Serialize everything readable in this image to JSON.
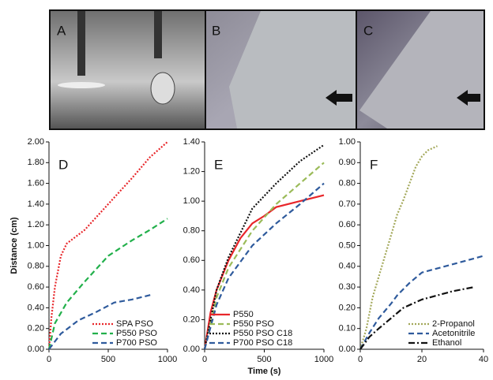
{
  "photos": [
    {
      "label": "A"
    },
    {
      "label": "B"
    },
    {
      "label": "C"
    }
  ],
  "chart_data": [
    {
      "type": "line",
      "panel_label": "D",
      "y_label": "Distance (cm)",
      "xlim": [
        0,
        1000
      ],
      "xticks": [
        0,
        500,
        1000
      ],
      "ylim": [
        0,
        2
      ],
      "yticks": [
        {
          "value": 0,
          "label": "0.00"
        },
        {
          "value": 0.2,
          "label": "0.20"
        },
        {
          "value": 0.4,
          "label": "0.40"
        },
        {
          "value": 0.6,
          "label": "0.60"
        },
        {
          "value": 0.8,
          "label": "0.80"
        },
        {
          "value": 1,
          "label": "1.00"
        },
        {
          "value": 1.2,
          "label": "1.20"
        },
        {
          "value": 1.4,
          "label": "1.40"
        },
        {
          "value": 1.6,
          "label": "1.60"
        },
        {
          "value": 1.8,
          "label": "1.80"
        },
        {
          "value": 2,
          "label": "2.00"
        }
      ],
      "legend": "lower right",
      "series": [
        {
          "name": "SPA PSO",
          "color": "#e8262a",
          "dash": "dotted",
          "x": [
            0,
            20,
            50,
            100,
            150,
            300,
            500,
            700,
            850,
            1000
          ],
          "values": [
            0,
            0.3,
            0.6,
            0.9,
            1.02,
            1.15,
            1.4,
            1.65,
            1.85,
            2.0
          ]
        },
        {
          "name": "P550 PSO",
          "color": "#22b04b",
          "dash": "dashed",
          "x": [
            0,
            50,
            150,
            300,
            500,
            700,
            850,
            1000
          ],
          "values": [
            0,
            0.25,
            0.45,
            0.65,
            0.9,
            1.05,
            1.15,
            1.26
          ]
        },
        {
          "name": "P700 PSO",
          "color": "#2e5a9c",
          "dash": "dashed",
          "x": [
            0,
            100,
            250,
            400,
            550,
            700,
            880
          ],
          "values": [
            0,
            0.15,
            0.28,
            0.36,
            0.45,
            0.48,
            0.53
          ]
        }
      ]
    },
    {
      "type": "line",
      "panel_label": "E",
      "x_label": "Time (s)",
      "xlim": [
        0,
        1000
      ],
      "xticks": [
        0,
        500,
        1000
      ],
      "ylim": [
        0,
        1.4
      ],
      "yticks": [
        {
          "value": 0,
          "label": "0.00"
        },
        {
          "value": 0.2,
          "label": "0.20"
        },
        {
          "value": 0.4,
          "label": "0.40"
        },
        {
          "value": 0.6,
          "label": "0.60"
        },
        {
          "value": 0.8,
          "label": "0.80"
        },
        {
          "value": 1,
          "label": "1.00"
        },
        {
          "value": 1.2,
          "label": "1.20"
        },
        {
          "value": 1.4,
          "label": "1.40"
        }
      ],
      "legend": "lower left",
      "series": [
        {
          "name": "P550",
          "color": "#e8262a",
          "dash": "solid",
          "x": [
            0,
            50,
            100,
            200,
            300,
            400,
            500,
            600,
            800,
            1000
          ],
          "values": [
            0,
            0.25,
            0.4,
            0.6,
            0.75,
            0.85,
            0.9,
            0.96,
            1.0,
            1.04
          ]
        },
        {
          "name": "P550 PSO",
          "color": "#9bbb59",
          "dash": "dashed",
          "x": [
            0,
            100,
            200,
            400,
            600,
            800,
            1000
          ],
          "values": [
            0,
            0.35,
            0.55,
            0.8,
            0.98,
            1.12,
            1.26
          ]
        },
        {
          "name": "P550 PSO C18",
          "color": "#111111",
          "dash": "dotted",
          "x": [
            0,
            100,
            200,
            400,
            600,
            800,
            1000
          ],
          "values": [
            0,
            0.4,
            0.62,
            0.95,
            1.12,
            1.27,
            1.38
          ]
        },
        {
          "name": "P700 PSO C18",
          "color": "#2e5a9c",
          "dash": "dashed",
          "x": [
            0,
            100,
            200,
            400,
            600,
            800,
            1000
          ],
          "values": [
            0,
            0.3,
            0.48,
            0.7,
            0.85,
            0.98,
            1.12
          ]
        }
      ]
    },
    {
      "type": "line",
      "panel_label": "F",
      "xlim": [
        0,
        40
      ],
      "xticks": [
        0,
        20,
        40
      ],
      "ylim": [
        0,
        1
      ],
      "yticks": [
        {
          "value": 0,
          "label": "0.00"
        },
        {
          "value": 0.1,
          "label": "0.10"
        },
        {
          "value": 0.2,
          "label": "0.20"
        },
        {
          "value": 0.3,
          "label": "0.30"
        },
        {
          "value": 0.4,
          "label": "0.40"
        },
        {
          "value": 0.5,
          "label": "0.50"
        },
        {
          "value": 0.6,
          "label": "0.60"
        },
        {
          "value": 0.7,
          "label": "0.70"
        },
        {
          "value": 0.8,
          "label": "0.80"
        },
        {
          "value": 0.9,
          "label": "0.90"
        },
        {
          "value": 1,
          "label": "1.00"
        }
      ],
      "legend": "lower right",
      "series": [
        {
          "name": "2-Propanol",
          "color": "#a3a85a",
          "dash": "dotted",
          "x": [
            0,
            2,
            4,
            6,
            8,
            10,
            12,
            14,
            16,
            18,
            20,
            22,
            25
          ],
          "values": [
            0,
            0.1,
            0.25,
            0.35,
            0.45,
            0.55,
            0.65,
            0.72,
            0.8,
            0.88,
            0.93,
            0.96,
            0.98
          ]
        },
        {
          "name": "Acetonitrile",
          "color": "#2e5a9c",
          "dash": "dashed",
          "x": [
            0,
            3,
            6,
            10,
            12,
            16,
            20,
            30,
            40
          ],
          "values": [
            0,
            0.08,
            0.15,
            0.22,
            0.26,
            0.32,
            0.37,
            0.41,
            0.45
          ]
        },
        {
          "name": "Ethanol",
          "color": "#111111",
          "dash": "dashdot",
          "x": [
            0,
            3,
            6,
            10,
            14,
            20,
            30,
            37
          ],
          "values": [
            0,
            0.06,
            0.1,
            0.15,
            0.2,
            0.24,
            0.28,
            0.3
          ]
        }
      ]
    }
  ]
}
